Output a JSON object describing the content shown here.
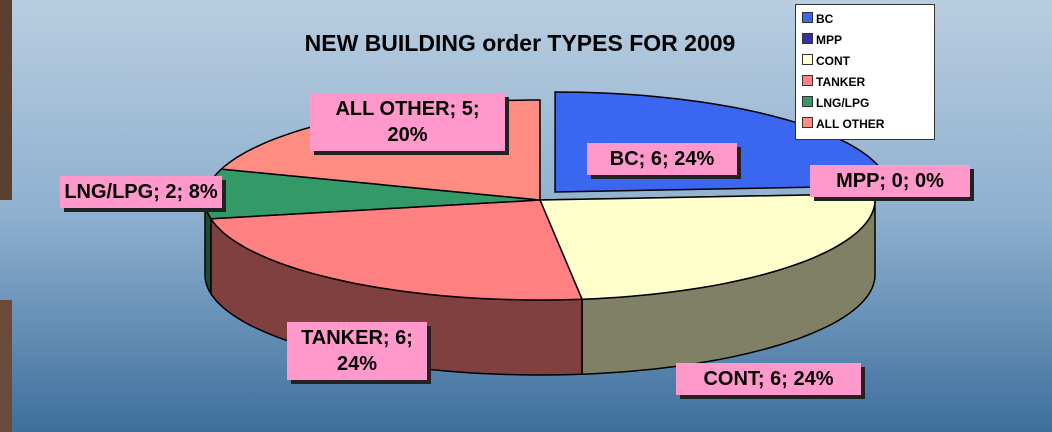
{
  "chart_data": {
    "type": "pie3d",
    "title": "NEW BUILDING order TYPES FOR 2009",
    "categories": [
      "BC",
      "MPP",
      "CONT",
      "TANKER",
      "LNG/LPG",
      "ALL OTHER"
    ],
    "values": [
      6,
      0,
      6,
      6,
      2,
      5
    ],
    "value_labels": [
      "BC; 6; 24%",
      "MPP; 0; 0%",
      "CONT; 6; 24%",
      "TANKER; 6; 24%",
      "LNG/LPG; 2; 8%",
      "ALL OTHER; 5; 20%"
    ],
    "colors": [
      "#3a66f0",
      "#333399",
      "#ffffcc",
      "#ff8080",
      "#339966",
      "#ff8c80"
    ],
    "legend": "top-right"
  }
}
